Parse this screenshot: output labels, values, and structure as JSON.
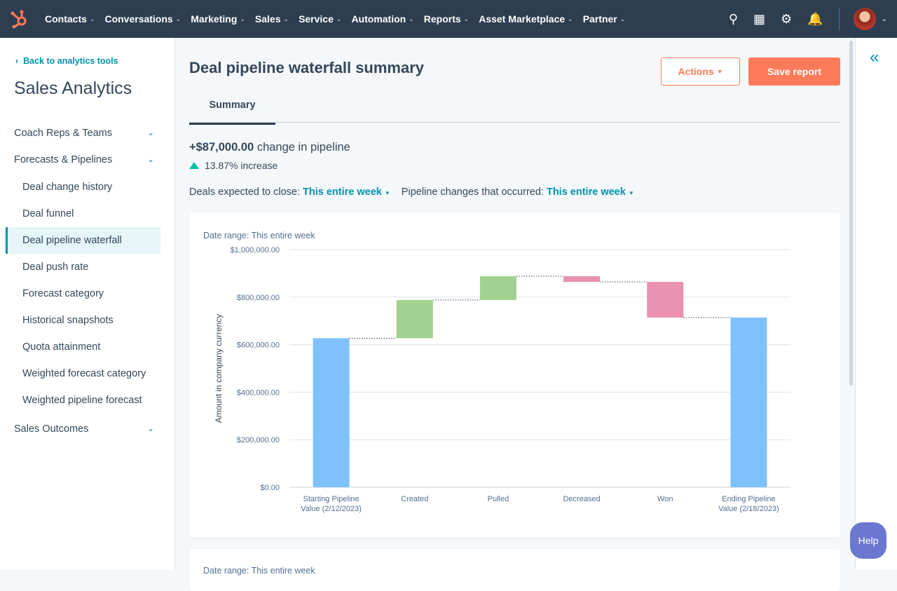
{
  "nav": {
    "items": [
      "Contacts",
      "Conversations",
      "Marketing",
      "Sales",
      "Service",
      "Automation",
      "Reports",
      "Asset Marketplace",
      "Partner"
    ],
    "icons": [
      "search-icon",
      "marketplace-icon",
      "gear-icon",
      "bell-icon"
    ]
  },
  "sidebar": {
    "back": "Back to analytics tools",
    "title": "Sales Analytics",
    "sections": [
      "Coach Reps & Teams",
      "Forecasts & Pipelines",
      "Sales Outcomes"
    ],
    "items": [
      "Deal change history",
      "Deal funnel",
      "Deal pipeline waterfall",
      "Deal push rate",
      "Forecast category",
      "Historical snapshots",
      "Quota attainment",
      "Weighted forecast category",
      "Weighted pipeline forecast"
    ],
    "active": "Deal pipeline waterfall"
  },
  "header": {
    "title": "Deal pipeline waterfall summary",
    "actions": "Actions",
    "save": "Save report"
  },
  "tabs": [
    "Summary"
  ],
  "summary": {
    "change_amount": "+$87,000.00",
    "change_text": "change in pipeline",
    "increase": "13.87% increase"
  },
  "filters": {
    "close_label": "Deals expected to close:",
    "close_value": "This entire week",
    "changes_label": "Pipeline changes that occurred:",
    "changes_value": "This entire week"
  },
  "help": "Help",
  "colors": {
    "start_end": "#7fc1fd",
    "increase": "#a2d28f",
    "decrease": "#ea90b1",
    "accent": "#0091ae",
    "brand": "#ff7a59"
  },
  "chart_data": {
    "type": "waterfall",
    "title": "Date range: This entire week",
    "ylabel": "Amount in company currency",
    "ylim": [
      0,
      1000000
    ],
    "yticks": [
      "$0.00",
      "$200,000.00",
      "$400,000.00",
      "$600,000.00",
      "$800,000.00",
      "$1,000,000.00"
    ],
    "categories": [
      [
        "Starting Pipeline",
        "Value (2/12/2023)"
      ],
      [
        "Created"
      ],
      [
        "Pulled"
      ],
      [
        "Decreased"
      ],
      [
        "Won"
      ],
      [
        "Ending Pipeline",
        "Value (2/18/2023)"
      ]
    ],
    "bars": [
      {
        "kind": "total",
        "from": 0,
        "to": 627000
      },
      {
        "kind": "increase",
        "from": 627000,
        "to": 788000
      },
      {
        "kind": "increase",
        "from": 788000,
        "to": 888000
      },
      {
        "kind": "decrease",
        "from": 888000,
        "to": 864000
      },
      {
        "kind": "decrease",
        "from": 864000,
        "to": 714000
      },
      {
        "kind": "total",
        "from": 0,
        "to": 714000
      }
    ],
    "grid": true
  },
  "second_card": {
    "label": "Date range: This entire week"
  }
}
